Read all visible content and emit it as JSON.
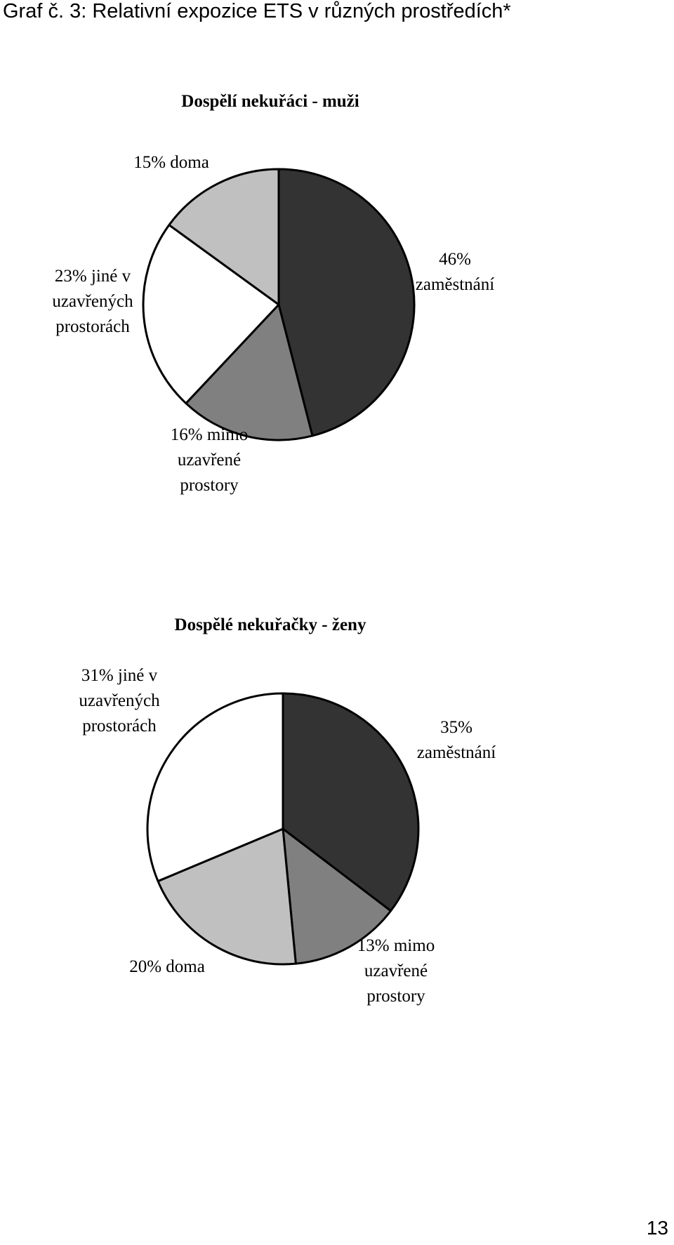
{
  "page": {
    "heading": "Graf č. 3: Relativní expozice ETS v různých prostředích*",
    "page_number": "13"
  },
  "chart_data": [
    {
      "type": "pie",
      "title": "Dospělí nekuřáci - muži",
      "slices": [
        {
          "label": [
            "46%",
            "zaměstnání"
          ],
          "value": 46,
          "color": "#333333"
        },
        {
          "label": [
            "16% mimo",
            "uzavřené",
            "prostory"
          ],
          "value": 16,
          "color": "#808080"
        },
        {
          "label": [
            "23% jiné v",
            "uzavřených",
            "prostorách"
          ],
          "value": 23,
          "color": "#ffffff"
        },
        {
          "label": [
            "15% doma"
          ],
          "value": 15,
          "color": "#c0c0c0"
        }
      ]
    },
    {
      "type": "pie",
      "title": "Dospělé nekuřačky - ženy",
      "slices": [
        {
          "label": [
            "35%",
            "zaměstnání"
          ],
          "value": 35,
          "color": "#333333"
        },
        {
          "label": [
            "13% mimo",
            "uzavřené",
            "prostory"
          ],
          "value": 13,
          "color": "#808080"
        },
        {
          "label": [
            "20% doma"
          ],
          "value": 20,
          "color": "#c0c0c0"
        },
        {
          "label": [
            "31% jiné v",
            "uzavřených",
            "prostorách"
          ],
          "value": 31,
          "color": "#ffffff"
        }
      ]
    }
  ]
}
